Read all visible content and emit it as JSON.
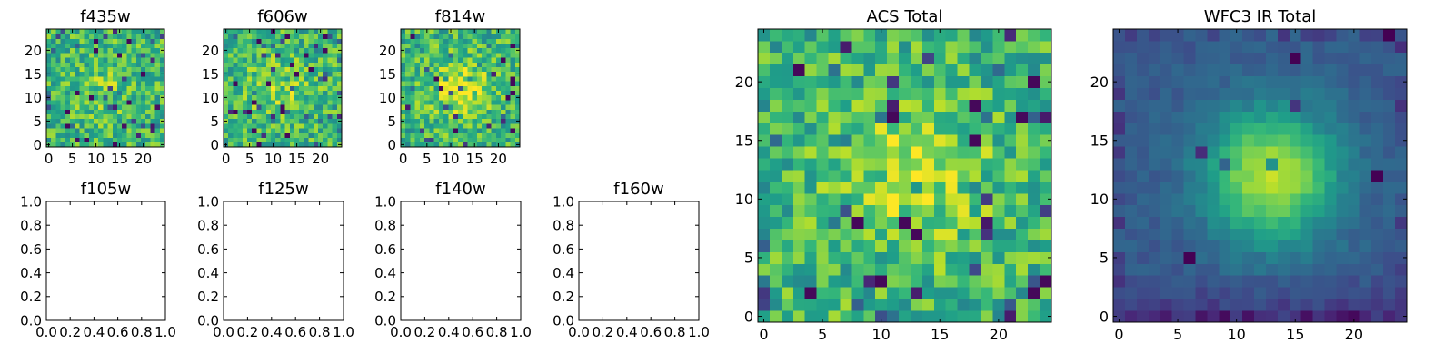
{
  "chart_data": [
    {
      "type": "heatmap",
      "title": "f435w",
      "xlim": [
        -0.5,
        24.5
      ],
      "ylim": [
        -0.5,
        24.5
      ],
      "xticks": [
        0,
        5,
        10,
        15,
        20
      ],
      "yticks": [
        0,
        5,
        10,
        15,
        20
      ],
      "grid": false,
      "colormap": "viridis",
      "character": "noise",
      "center": [
        12,
        12
      ],
      "peak": 0.25,
      "grid_size": 25
    },
    {
      "type": "heatmap",
      "title": "f606w",
      "xlim": [
        -0.5,
        24.5
      ],
      "ylim": [
        -0.5,
        24.5
      ],
      "xticks": [
        0,
        5,
        10,
        15,
        20
      ],
      "yticks": [
        0,
        5,
        10,
        15,
        20
      ],
      "grid": false,
      "colormap": "viridis",
      "character": "noise with faint central source",
      "center": [
        11,
        12
      ],
      "peak": 0.4,
      "grid_size": 25
    },
    {
      "type": "heatmap",
      "title": "f814w",
      "xlim": [
        -0.5,
        24.5
      ],
      "ylim": [
        -0.5,
        24.5
      ],
      "xticks": [
        0,
        5,
        10,
        15,
        20
      ],
      "yticks": [
        0,
        5,
        10,
        15,
        20
      ],
      "grid": false,
      "colormap": "viridis",
      "character": "noise with central source",
      "center": [
        12,
        12
      ],
      "peak": 0.55,
      "grid_size": 25
    },
    {
      "type": "empty",
      "title": "f105w",
      "xlim": [
        0,
        1
      ],
      "ylim": [
        0,
        1
      ],
      "xticks": [
        "0.0",
        "0.2",
        "0.4",
        "0.6",
        "0.8",
        "1.0"
      ],
      "yticks": [
        "0.0",
        "0.2",
        "0.4",
        "0.6",
        "0.8",
        "1.0"
      ]
    },
    {
      "type": "empty",
      "title": "f125w",
      "xlim": [
        0,
        1
      ],
      "ylim": [
        0,
        1
      ],
      "xticks": [
        "0.0",
        "0.2",
        "0.4",
        "0.6",
        "0.8",
        "1.0"
      ],
      "yticks": [
        "0.0",
        "0.2",
        "0.4",
        "0.6",
        "0.8",
        "1.0"
      ]
    },
    {
      "type": "empty",
      "title": "f140w",
      "xlim": [
        0,
        1
      ],
      "ylim": [
        0,
        1
      ],
      "xticks": [
        "0.0",
        "0.2",
        "0.4",
        "0.6",
        "0.8",
        "1.0"
      ],
      "yticks": [
        "0.0",
        "0.2",
        "0.4",
        "0.6",
        "0.8",
        "1.0"
      ]
    },
    {
      "type": "empty",
      "title": "f160w",
      "xlim": [
        0,
        1
      ],
      "ylim": [
        0,
        1
      ],
      "xticks": [
        "0.0",
        "0.2",
        "0.4",
        "0.6",
        "0.8",
        "1.0"
      ],
      "yticks": [
        "0.0",
        "0.2",
        "0.4",
        "0.6",
        "0.8",
        "1.0"
      ]
    },
    {
      "type": "heatmap",
      "title": "ACS Total",
      "xlim": [
        -0.5,
        24.5
      ],
      "ylim": [
        -0.5,
        24.5
      ],
      "xticks": [
        0,
        5,
        10,
        15,
        20
      ],
      "yticks": [
        0,
        5,
        10,
        15,
        20
      ],
      "grid": false,
      "colormap": "viridis",
      "character": "noisy with central source",
      "center": [
        13,
        12
      ],
      "peak": 0.45,
      "grid_size": 25
    },
    {
      "type": "heatmap",
      "title": "WFC3 IR Total",
      "xlim": [
        -0.5,
        24.5
      ],
      "ylim": [
        -0.5,
        24.5
      ],
      "xticks": [
        0,
        5,
        10,
        15,
        20
      ],
      "yticks": [
        0,
        5,
        10,
        15,
        20
      ],
      "grid": false,
      "colormap": "viridis",
      "character": "smooth bright central source",
      "center": [
        13,
        12
      ],
      "peak": 1.0,
      "grid_size": 25
    }
  ]
}
